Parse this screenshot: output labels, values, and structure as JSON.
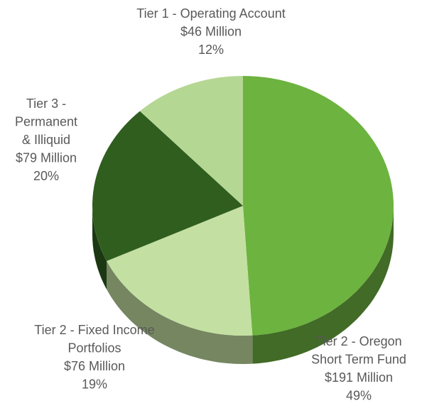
{
  "chart_data": {
    "type": "pie",
    "categories": [
      [
        "Tier 2 - Oregon",
        "Short Term Fund"
      ],
      [
        "Tier 2 - Fixed Income",
        "Portfolios"
      ],
      [
        "Tier 3 -",
        "Permanent",
        "& Illiquid"
      ],
      [
        "Tier 1 - Operating Account"
      ]
    ],
    "values": [
      49,
      19,
      20,
      12
    ],
    "value_labels": [
      "49%",
      "19%",
      "20%",
      "12%"
    ],
    "amounts": [
      191,
      76,
      79,
      46
    ],
    "amount_labels": [
      "$191 Million",
      "$76 Million",
      "$79 Million",
      "$46 Million"
    ],
    "colors": [
      "#6db33f",
      "#c3e0a2",
      "#2f5e1f",
      "#b5d794"
    ]
  }
}
